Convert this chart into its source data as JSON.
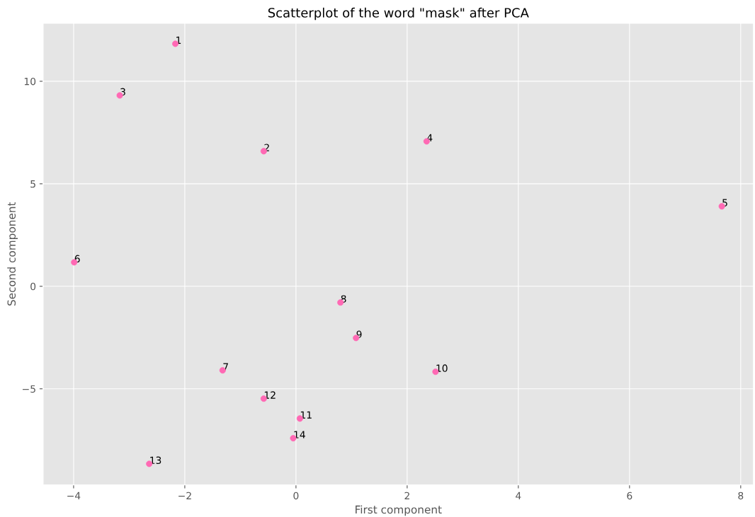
{
  "chart_data": {
    "type": "scatter",
    "title": "Scatterplot of the word \"mask\" after PCA",
    "xlabel": "First component",
    "ylabel": "Second component",
    "x": [
      -2.17,
      -0.58,
      -3.17,
      2.35,
      7.66,
      -3.99,
      -1.32,
      0.8,
      1.08,
      2.51,
      0.07,
      -0.58,
      -2.64,
      -0.05
    ],
    "series": [
      {
        "color": "#ff69b4",
        "values": [
          11.83,
          6.59,
          9.31,
          7.07,
          3.9,
          1.17,
          -4.1,
          -0.79,
          -2.52,
          -4.17,
          -6.45,
          -5.48,
          -8.66,
          -7.41
        ]
      }
    ],
    "annotations": [
      {
        "text": "1",
        "x": -2.17,
        "y": 11.83
      },
      {
        "text": "2",
        "x": -0.58,
        "y": 6.59
      },
      {
        "text": "3",
        "x": -3.17,
        "y": 9.31
      },
      {
        "text": "4",
        "x": 2.35,
        "y": 7.07
      },
      {
        "text": "5",
        "x": 7.66,
        "y": 3.9
      },
      {
        "text": "6",
        "x": -3.99,
        "y": 1.17
      },
      {
        "text": "7",
        "x": -1.32,
        "y": -4.1
      },
      {
        "text": "8",
        "x": 0.8,
        "y": -0.79
      },
      {
        "text": "9",
        "x": 1.08,
        "y": -2.52
      },
      {
        "text": "10",
        "x": 2.51,
        "y": -4.17
      },
      {
        "text": "11",
        "x": 0.07,
        "y": -6.45
      },
      {
        "text": "12",
        "x": -0.58,
        "y": -5.48
      },
      {
        "text": "13",
        "x": -2.64,
        "y": -8.66
      },
      {
        "text": "14",
        "x": -0.05,
        "y": -7.41
      }
    ],
    "xlim": [
      -4.55,
      8.23
    ],
    "ylim": [
      -9.69,
      12.83
    ],
    "xticks": [
      {
        "value": -4,
        "label": "−4"
      },
      {
        "value": -2,
        "label": "−2"
      },
      0,
      2,
      4,
      6,
      8
    ],
    "yticks": [
      {
        "value": -5,
        "label": "−5"
      },
      0,
      5,
      10
    ],
    "grid": true,
    "marker": "circle"
  }
}
